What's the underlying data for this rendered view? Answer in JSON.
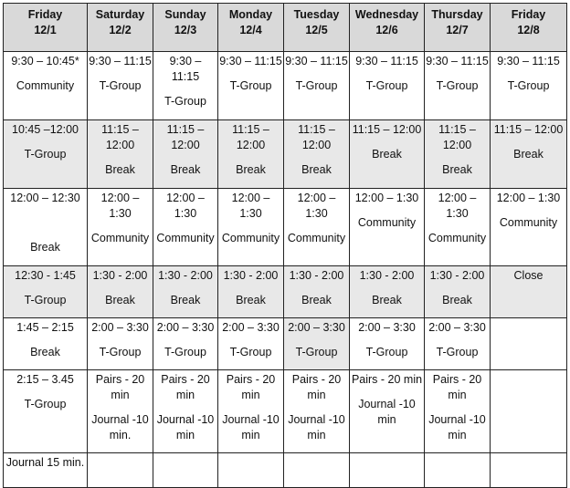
{
  "table": {
    "header": [
      [
        "Friday",
        "12/1"
      ],
      [
        "Saturday",
        "12/2"
      ],
      [
        "Sunday",
        "12/3"
      ],
      [
        "Monday",
        "12/4"
      ],
      [
        "Tuesday",
        "12/5"
      ],
      [
        "Wednesday",
        "12/6"
      ],
      [
        "Thursday",
        "12/7"
      ],
      [
        "Friday",
        "12/8"
      ]
    ],
    "rows": [
      [
        [
          "9:30 – 10:45*",
          "Community"
        ],
        [
          "9:30 – 11:15",
          "T-Group"
        ],
        [
          "9:30 – 11:15",
          "T-Group"
        ],
        [
          "9:30 – 11:15",
          "T-Group"
        ],
        [
          "9:30 – 11:15",
          "T-Group"
        ],
        [
          "9:30 – 11:15",
          "T-Group"
        ],
        [
          "9:30 – 11:15",
          "T-Group"
        ],
        [
          "9:30 – 11:15",
          "T-Group"
        ]
      ],
      [
        [
          "10:45 –12:00",
          "T-Group"
        ],
        [
          "11:15 – 12:00",
          "Break"
        ],
        [
          "11:15 – 12:00",
          "Break"
        ],
        [
          "11:15 – 12:00",
          "Break"
        ],
        [
          "11:15 – 12:00",
          "Break"
        ],
        [
          "11:15 – 12:00",
          "Break"
        ],
        [
          "11:15 – 12:00",
          "Break"
        ],
        [
          "11:15 – 12:00",
          "Break"
        ]
      ],
      [
        [
          "12:00 – 12:30",
          "Break"
        ],
        [
          "12:00 – 1:30",
          "Community"
        ],
        [
          "12:00 – 1:30",
          "Community"
        ],
        [
          "12:00 – 1:30",
          "Community"
        ],
        [
          "12:00 – 1:30",
          "Community"
        ],
        [
          "12:00 – 1:30",
          "Community"
        ],
        [
          "12:00 – 1:30",
          "Community"
        ],
        [
          "12:00 – 1:30",
          "Community"
        ]
      ],
      [
        [
          "12:30 - 1:45",
          "T-Group"
        ],
        [
          "1:30 - 2:00",
          "Break"
        ],
        [
          "1:30 - 2:00",
          "Break"
        ],
        [
          "1:30 - 2:00",
          "Break"
        ],
        [
          "1:30 - 2:00",
          "Break"
        ],
        [
          "1:30 - 2:00",
          "Break"
        ],
        [
          "1:30 - 2:00",
          "Break"
        ],
        [
          "Close"
        ]
      ],
      [
        [
          "1:45 – 2:15",
          "Break"
        ],
        [
          "2:00 – 3:30",
          "T-Group"
        ],
        [
          "2:00 – 3:30",
          "T-Group"
        ],
        [
          "2:00 – 3:30",
          "T-Group"
        ],
        [
          "2:00 – 3:30",
          "T-Group"
        ],
        [
          "2:00 – 3:30",
          "T-Group"
        ],
        [
          "2:00 – 3:30",
          "T-Group"
        ],
        []
      ],
      [
        [
          "2:15 – 3.45",
          "T-Group"
        ],
        [
          "Pairs - 20 min",
          "Journal -10 min."
        ],
        [
          "Pairs - 20 min",
          "Journal -10 min"
        ],
        [
          "Pairs - 20 min",
          "Journal -10 min"
        ],
        [
          "Pairs - 20 min",
          "Journal -10 min"
        ],
        [
          "Pairs - 20 min",
          "Journal -10 min"
        ],
        [
          "Pairs - 20 min",
          "Journal -10 min"
        ],
        []
      ],
      [
        [
          "Journal 15 min."
        ],
        [],
        [],
        [],
        [],
        [],
        [],
        []
      ]
    ]
  }
}
